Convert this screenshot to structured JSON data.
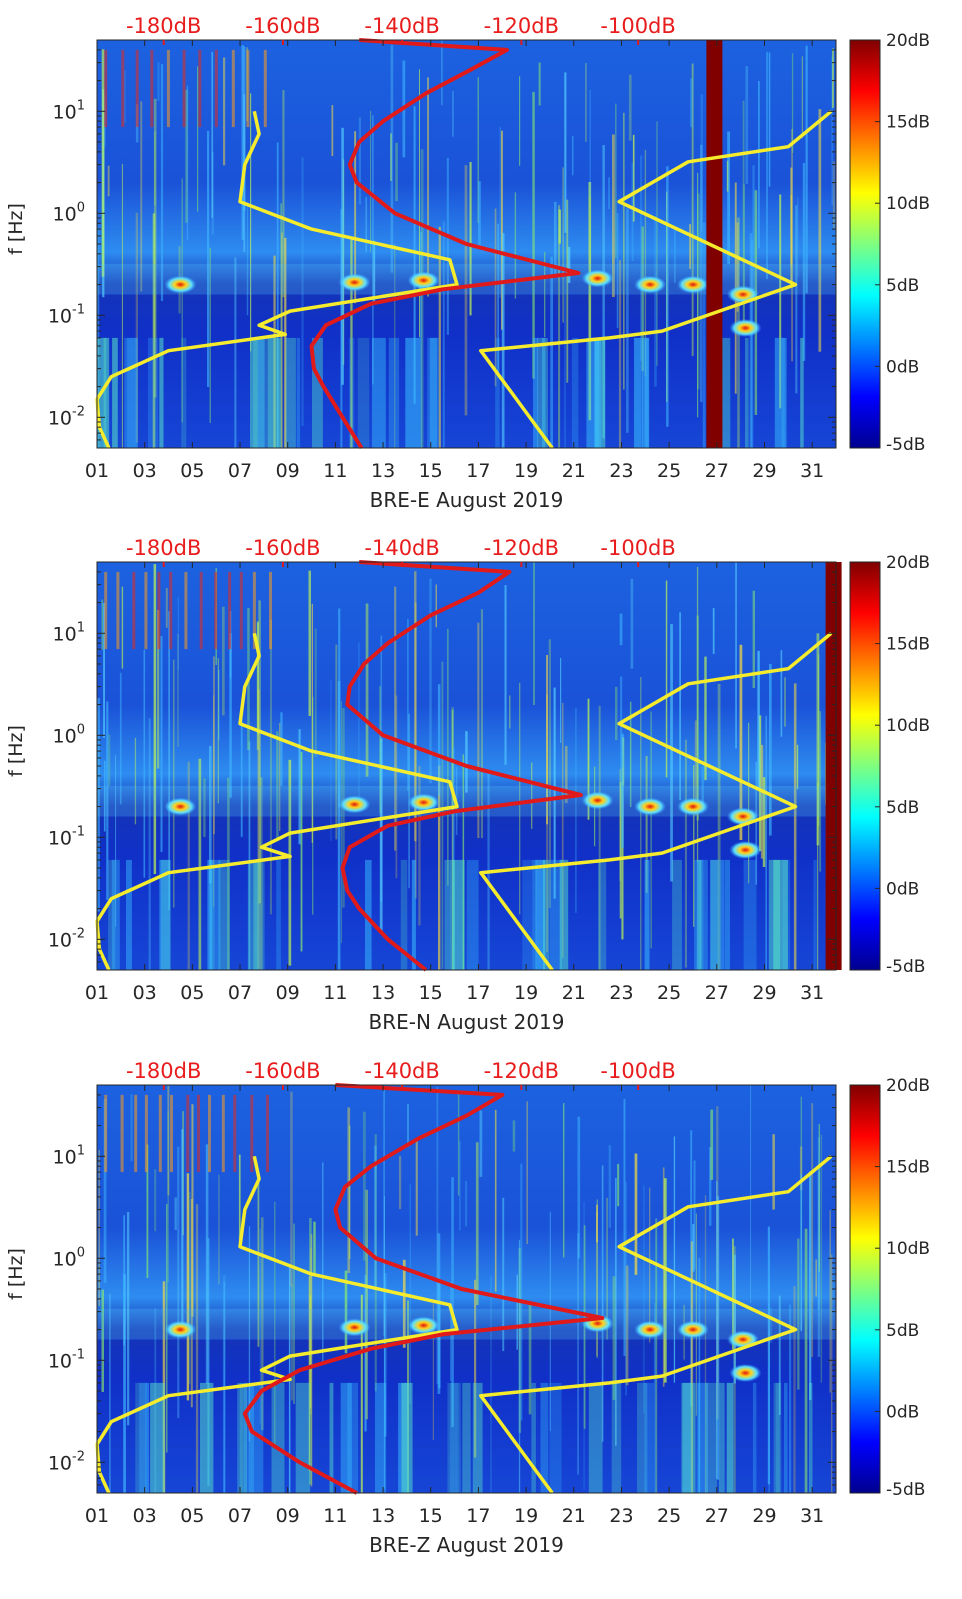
{
  "figure": {
    "colormap": "jet",
    "colors": {
      "psd_curve": "#e01a1a",
      "noise_model": "#f5ec2e",
      "top_axis_labels": "#e81c1c",
      "axis_text": "#262626"
    }
  },
  "chart_data": [
    {
      "type": "heatmap",
      "xlabel": "BRE-E August 2019",
      "ylabel": "f [Hz]",
      "x_ticks": [
        "01",
        "03",
        "05",
        "07",
        "09",
        "11",
        "13",
        "15",
        "17",
        "19",
        "21",
        "23",
        "25",
        "27",
        "29",
        "31"
      ],
      "y_ticks": [
        "10-2",
        "10-1",
        "100",
        "101"
      ],
      "y_scale": "log",
      "ylim_hz": [
        0.005,
        50
      ],
      "top_ticks": [
        "-180dB",
        "-160dB",
        "-140dB",
        "-120dB",
        "-100dB"
      ],
      "colorbar_ticks": [
        "20dB",
        "15dB",
        "10dB",
        "5dB",
        "0dB",
        "-5dB"
      ],
      "clim_db": [
        -5,
        20
      ],
      "gap_day": 26.9,
      "red_curve_day": [
        12.1,
        11.3,
        10.5,
        10.1,
        10.0,
        10.6,
        12.5,
        15.5,
        21.2,
        16.5,
        13.5,
        11.9,
        11.6,
        12.0,
        13.0,
        14.8,
        16.6,
        18.2,
        12.0
      ],
      "red_curve_hz": [
        0.005,
        0.01,
        0.02,
        0.03,
        0.05,
        0.08,
        0.13,
        0.18,
        0.26,
        0.5,
        1.0,
        2.0,
        3.0,
        5.0,
        8.0,
        15.0,
        25.0,
        40.0,
        50.0
      ],
      "yellow_low_day": [
        1.5,
        1.1,
        1.0,
        1.6,
        4.0,
        8.9,
        7.8,
        9.1,
        16.1,
        15.8,
        10.0,
        7.0,
        7.2,
        7.8,
        7.6
      ],
      "yellow_low_hz": [
        0.005,
        0.008,
        0.015,
        0.025,
        0.045,
        0.065,
        0.08,
        0.11,
        0.2,
        0.35,
        0.7,
        1.3,
        3.0,
        6.0,
        10.0
      ],
      "yellow_high_day": [
        20.1,
        17.1,
        22.5,
        24.7,
        30.3,
        22.9,
        25.8,
        30.0,
        31.8
      ],
      "yellow_high_hz": [
        0.005,
        0.045,
        0.06,
        0.07,
        0.2,
        1.3,
        3.2,
        4.5,
        10.0
      ]
    },
    {
      "type": "heatmap",
      "xlabel": "BRE-N August 2019",
      "ylabel": "f [Hz]",
      "x_ticks": [
        "01",
        "03",
        "05",
        "07",
        "09",
        "11",
        "13",
        "15",
        "17",
        "19",
        "21",
        "23",
        "25",
        "27",
        "29",
        "31"
      ],
      "y_ticks": [
        "10-2",
        "10-1",
        "100",
        "101"
      ],
      "y_scale": "log",
      "ylim_hz": [
        0.005,
        50
      ],
      "top_ticks": [
        "-180dB",
        "-160dB",
        "-140dB",
        "-120dB",
        "-100dB"
      ],
      "colorbar_ticks": [
        "20dB",
        "15dB",
        "10dB",
        "5dB",
        "0dB",
        "-5dB"
      ],
      "clim_db": [
        -5,
        20
      ],
      "gap_day": 31.9,
      "red_curve_day": [
        14.8,
        13.2,
        12.0,
        11.5,
        11.3,
        11.6,
        13.2,
        16.0,
        21.3,
        16.5,
        13.0,
        11.5,
        11.6,
        12.2,
        13.2,
        15.0,
        17.0,
        18.3,
        12.0
      ],
      "red_curve_hz": [
        0.005,
        0.01,
        0.02,
        0.03,
        0.05,
        0.08,
        0.13,
        0.18,
        0.26,
        0.5,
        1.0,
        2.0,
        3.0,
        5.0,
        8.0,
        15.0,
        25.0,
        40.0,
        50.0
      ],
      "yellow_low_day": [
        1.5,
        1.1,
        1.0,
        1.6,
        4.0,
        9.1,
        7.9,
        9.1,
        16.1,
        15.8,
        10.0,
        7.0,
        7.2,
        7.8,
        7.6
      ],
      "yellow_low_hz": [
        0.005,
        0.008,
        0.015,
        0.025,
        0.045,
        0.065,
        0.08,
        0.11,
        0.2,
        0.35,
        0.7,
        1.3,
        3.0,
        6.0,
        10.0
      ],
      "yellow_high_day": [
        20.1,
        17.1,
        22.5,
        24.7,
        30.3,
        22.9,
        25.8,
        30.0,
        31.8
      ],
      "yellow_high_hz": [
        0.005,
        0.045,
        0.06,
        0.07,
        0.2,
        1.3,
        3.2,
        4.5,
        10.0
      ]
    },
    {
      "type": "heatmap",
      "xlabel": "BRE-Z August 2019",
      "ylabel": "f [Hz]",
      "x_ticks": [
        "01",
        "03",
        "05",
        "07",
        "09",
        "11",
        "13",
        "15",
        "17",
        "19",
        "21",
        "23",
        "25",
        "27",
        "29",
        "31"
      ],
      "y_ticks": [
        "10-2",
        "10-1",
        "100",
        "101"
      ],
      "y_scale": "log",
      "ylim_hz": [
        0.005,
        50
      ],
      "top_ticks": [
        "-180dB",
        "-160dB",
        "-140dB",
        "-120dB",
        "-100dB"
      ],
      "colorbar_ticks": [
        "20dB",
        "15dB",
        "10dB",
        "5dB",
        "0dB",
        "-5dB"
      ],
      "clim_db": [
        -5,
        20
      ],
      "gap_day": null,
      "red_curve_day": [
        11.9,
        9.5,
        7.5,
        7.2,
        7.9,
        9.5,
        12.5,
        15.5,
        22.2,
        16.3,
        12.7,
        11.2,
        11.0,
        11.4,
        12.5,
        14.5,
        16.5,
        18.0,
        11.0
      ],
      "red_curve_hz": [
        0.005,
        0.01,
        0.02,
        0.03,
        0.05,
        0.08,
        0.13,
        0.18,
        0.26,
        0.5,
        1.0,
        2.0,
        3.0,
        5.0,
        8.0,
        15.0,
        25.0,
        40.0,
        50.0
      ],
      "yellow_low_day": [
        1.5,
        1.1,
        1.0,
        1.6,
        4.0,
        9.1,
        7.9,
        9.1,
        16.1,
        15.8,
        10.0,
        7.0,
        7.2,
        7.8,
        7.6
      ],
      "yellow_low_hz": [
        0.005,
        0.008,
        0.015,
        0.025,
        0.045,
        0.065,
        0.08,
        0.11,
        0.2,
        0.35,
        0.7,
        1.3,
        3.0,
        6.0,
        10.0
      ],
      "yellow_high_day": [
        20.1,
        17.1,
        22.5,
        24.7,
        30.3,
        22.9,
        25.8,
        30.0,
        31.8
      ],
      "yellow_high_hz": [
        0.005,
        0.045,
        0.06,
        0.07,
        0.2,
        1.3,
        3.2,
        4.5,
        10.0
      ]
    }
  ]
}
